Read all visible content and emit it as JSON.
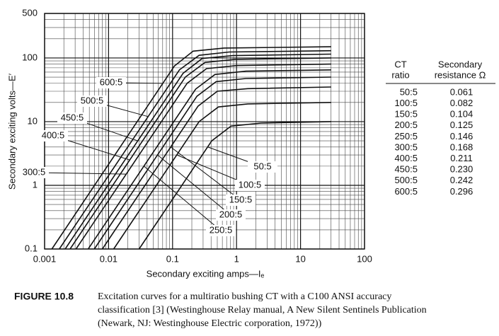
{
  "chart_data": {
    "type": "line",
    "xscale": "log",
    "yscale": "log",
    "grid": true,
    "color": "#111111",
    "xlabel": "Secondary exciting amps—Iₑ",
    "ylabel": "Secondary exciting volts—E′",
    "xlim": [
      0.001,
      100
    ],
    "ylim": [
      0.1,
      500
    ],
    "xticks": [
      0.001,
      0.01,
      0.1,
      1,
      10,
      100
    ],
    "yticks": [
      0.1,
      1,
      10,
      100,
      500
    ],
    "series": [
      {
        "name": "600:5",
        "x": [
          0.0013,
          0.107,
          0.21,
          0.64,
          30
        ],
        "values": [
          0.1,
          75,
          128,
          143,
          150
        ]
      },
      {
        "name": "500:5",
        "x": [
          0.0017,
          0.128,
          0.26,
          0.77,
          30
        ],
        "values": [
          0.1,
          65,
          110,
          124,
          130
        ]
      },
      {
        "name": "450:5",
        "x": [
          0.0021,
          0.146,
          0.29,
          0.88,
          30
        ],
        "values": [
          0.1,
          57.5,
          98,
          109,
          115
        ]
      },
      {
        "name": "400:5",
        "x": [
          0.0025,
          0.158,
          0.32,
          0.95,
          30
        ],
        "values": [
          0.1,
          50,
          85,
          95,
          100
        ]
      },
      {
        "name": "300:5",
        "x": [
          0.0031,
          0.169,
          0.34,
          1.0,
          30
        ],
        "values": [
          0.1,
          40,
          68,
          76,
          80
        ]
      },
      {
        "name": "250:5",
        "x": [
          0.0048,
          0.23,
          0.46,
          1.4,
          30
        ],
        "values": [
          0.1,
          32.5,
          55,
          62,
          65
        ]
      },
      {
        "name": "200:5",
        "x": [
          0.006,
          0.24,
          0.48,
          1.4,
          30
        ],
        "values": [
          0.1,
          25,
          42.5,
          47.5,
          50
        ]
      },
      {
        "name": "150:5",
        "x": [
          0.008,
          0.25,
          0.5,
          1.5,
          30
        ],
        "values": [
          0.1,
          17.5,
          30,
          33,
          35
        ]
      },
      {
        "name": "100:5",
        "x": [
          0.012,
          0.26,
          0.52,
          1.5,
          30
        ],
        "values": [
          0.1,
          10,
          17,
          19,
          20
        ]
      },
      {
        "name": "50:5",
        "x": [
          0.03,
          0.41,
          0.82,
          2.4,
          30
        ],
        "values": [
          0.1,
          5,
          8.5,
          9.5,
          10
        ]
      }
    ]
  },
  "table": {
    "columns": [
      [
        "CT",
        "ratio"
      ],
      [
        "Secondary",
        "resistance Ω"
      ]
    ],
    "rows": [
      [
        "50:5",
        "0.061"
      ],
      [
        "100:5",
        "0.082"
      ],
      [
        "150:5",
        "0.104"
      ],
      [
        "200:5",
        "0.125"
      ],
      [
        "250:5",
        "0.146"
      ],
      [
        "300:5",
        "0.168"
      ],
      [
        "400:5",
        "0.211"
      ],
      [
        "450:5",
        "0.230"
      ],
      [
        "500:5",
        "0.242"
      ],
      [
        "600:5",
        "0.296"
      ]
    ]
  },
  "caption": {
    "label": "FIGURE 10.8",
    "lines": [
      "Excitation curves for a multiratio bushing CT with a C100 ANSI accuracy",
      "classification [3] (Westinghouse Relay manual, A New Silent Sentinels Publication",
      "(Newark, NJ: Westinghouse Electric corporation, 1972))"
    ]
  }
}
